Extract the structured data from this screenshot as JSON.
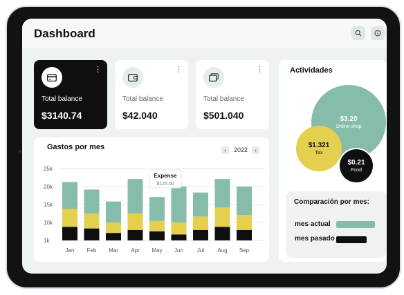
{
  "header": {
    "title": "Dashboard"
  },
  "cards": [
    {
      "label": "Total balance",
      "value": "$3140.74",
      "kebab": "⋮",
      "icon": "credit-card-icon"
    },
    {
      "label": "Total balance",
      "value": "$42.040",
      "kebab": "⋮",
      "icon": "wallet-icon"
    },
    {
      "label": "Total balance",
      "value": "$501.040",
      "kebab": "⋮",
      "icon": "cards-stack-icon"
    }
  ],
  "expenses": {
    "title": "Gastos por mes",
    "year": "2022",
    "prev": "‹",
    "next": "›",
    "tooltip": {
      "label": "Expense",
      "value": "$125.00"
    }
  },
  "chart_data": {
    "type": "bar",
    "stacked": true,
    "categories": [
      "Jan",
      "Feb",
      "Mar",
      "Apr",
      "May",
      "Jun",
      "Jul",
      "Aug",
      "Sep"
    ],
    "yticks": [
      "25k",
      "20k",
      "15k",
      "10k",
      "1k"
    ],
    "series": [
      {
        "color": "#0f0f10",
        "values": [
          4.5,
          4.0,
          2.5,
          3.5,
          3.0,
          2.0,
          3.5,
          4.5,
          3.5
        ]
      },
      {
        "color": "#e5cf4e",
        "values": [
          6.0,
          5.0,
          3.5,
          5.5,
          3.5,
          4.0,
          4.5,
          6.5,
          5.0
        ]
      },
      {
        "color": "#86bdaa",
        "values": [
          9.0,
          8.0,
          7.0,
          11.5,
          8.0,
          12.0,
          8.0,
          9.5,
          9.5
        ]
      }
    ],
    "ylim": [
      1,
      25
    ],
    "grid": true
  },
  "activities": {
    "title": "Actividades",
    "bubbles": [
      {
        "value": "$3.20",
        "name": "Online shop",
        "color": "#86bdaa"
      },
      {
        "value": "$1.321",
        "name": "Tax",
        "color": "#e5cf4e"
      },
      {
        "value": "$0.21",
        "name": "Food",
        "color": "#0f0f10"
      }
    ]
  },
  "comparison": {
    "title": "Comparación por mes:",
    "rows": [
      {
        "label": "mes actual",
        "color": "#86bdaa",
        "share": 0.74
      },
      {
        "label": "mes pasado",
        "color": "#0f0f10",
        "share": 0.58
      }
    ]
  }
}
